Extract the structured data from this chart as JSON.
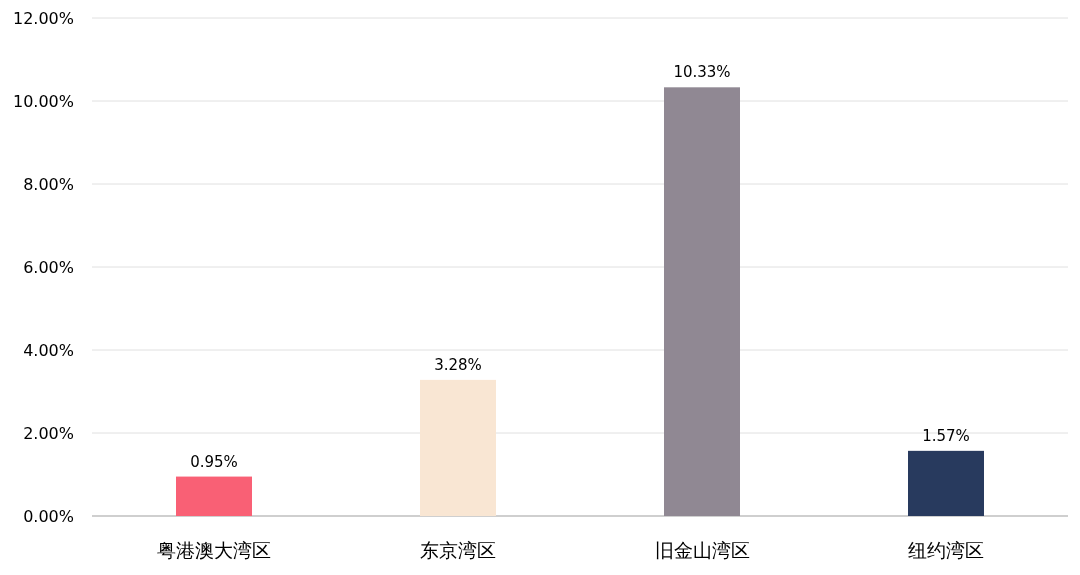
{
  "chart_data": {
    "type": "bar",
    "categories": [
      "粤港澳大湾区",
      "东京湾区",
      "旧金山湾区",
      "纽约湾区"
    ],
    "values": [
      0.95,
      3.28,
      10.33,
      1.57
    ],
    "colors": [
      "#f96075",
      "#f9e6d3",
      "#908893",
      "#283a5e"
    ],
    "value_labels": [
      "0.95%",
      "3.28%",
      "10.33%",
      "1.57%"
    ],
    "ylim": [
      0,
      12
    ],
    "yticks": [
      {
        "value": 0,
        "label": "0.00%"
      },
      {
        "value": 2,
        "label": "2.00%"
      },
      {
        "value": 4,
        "label": "4.00%"
      },
      {
        "value": 6,
        "label": "6.00%"
      },
      {
        "value": 8,
        "label": "8.00%"
      },
      {
        "value": 10,
        "label": "10.00%"
      },
      {
        "value": 12,
        "label": "12.00%"
      }
    ],
    "grid": "y",
    "legend": false
  }
}
